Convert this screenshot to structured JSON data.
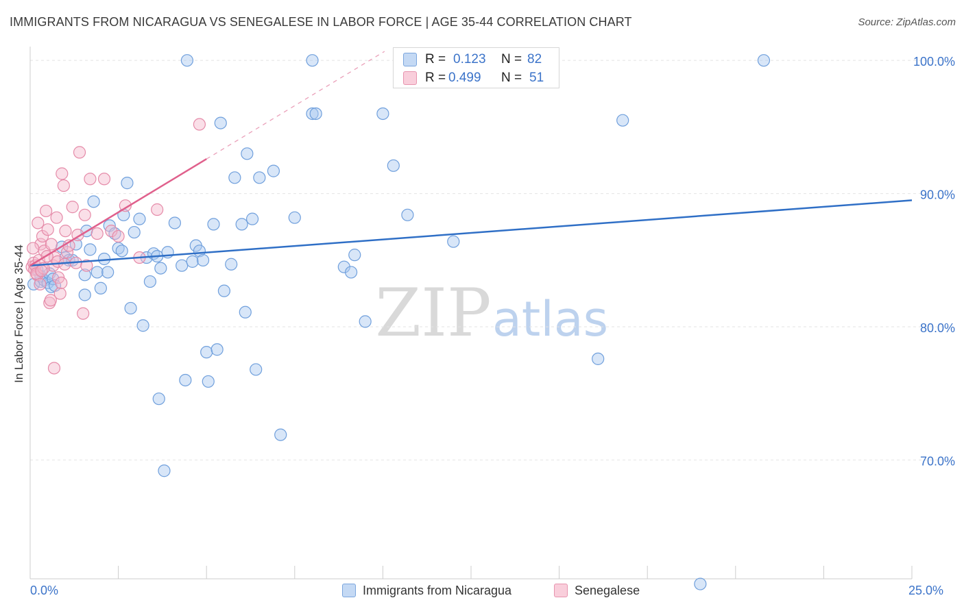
{
  "title": "IMMIGRANTS FROM NICARAGUA VS SENEGALESE IN LABOR FORCE | AGE 35-44 CORRELATION CHART",
  "source": "Source: ZipAtlas.com",
  "colors": {
    "blue_fill": "#a9c8ef",
    "blue_stroke": "#6f9fdc",
    "blue_line": "#2f6fc6",
    "pink_fill": "#f5b8cb",
    "pink_stroke": "#e58aa8",
    "pink_line": "#e0608c",
    "axis_label": "#3b73c9",
    "grid": "#e4e4e4"
  },
  "legend": {
    "rows": [
      {
        "r_label": "R =",
        "r_value": "0.123",
        "n_label": "N =",
        "n_value": "82"
      },
      {
        "r_label": "R =",
        "r_value": "0.499",
        "n_label": "N =",
        "n_value": "51"
      }
    ]
  },
  "bottom_legend": {
    "series1": "Immigrants from Nicaragua",
    "series2": "Senegalese"
  },
  "watermark": {
    "part1": "ZIP",
    "part2": "atlas"
  },
  "chart_data": {
    "type": "scatter",
    "title": "IMMIGRANTS FROM NICARAGUA VS SENEGALESE IN LABOR FORCE | AGE 35-44 CORRELATION CHART",
    "xlabel": "",
    "ylabel": "In Labor Force | Age 35-44",
    "xlim": [
      0,
      25
    ],
    "ylim": [
      61.5,
      101.5
    ],
    "x_tick_labels": [
      {
        "value": 0,
        "label": "0.0%"
      },
      {
        "value": 25,
        "label": "25.0%"
      }
    ],
    "y_tick_labels": [
      {
        "value": 70,
        "label": "70.0%"
      },
      {
        "value": 80,
        "label": "80.0%"
      },
      {
        "value": 90,
        "label": "90.0%"
      },
      {
        "value": 100,
        "label": "100.0%"
      }
    ],
    "x_minor_ticks": [
      2.5,
      5,
      7.5,
      10,
      12.5,
      15,
      17.5,
      20,
      22.5,
      25
    ],
    "series": [
      {
        "name": "Immigrants from Nicaragua",
        "color": "#a9c8ef",
        "R": 0.123,
        "N": 82,
        "trend": {
          "x": [
            0,
            25
          ],
          "y": [
            84.6,
            89.5
          ],
          "extend_dashed": false
        },
        "points": [
          [
            0.1,
            83.2
          ],
          [
            0.3,
            83.4
          ],
          [
            0.3,
            83.8
          ],
          [
            0.4,
            83.5
          ],
          [
            0.5,
            83.3
          ],
          [
            0.55,
            84.0
          ],
          [
            0.6,
            83.0
          ],
          [
            0.65,
            83.6
          ],
          [
            0.7,
            83.1
          ],
          [
            0.9,
            86.0
          ],
          [
            1.0,
            85.2
          ],
          [
            1.1,
            85.0
          ],
          [
            1.2,
            85.0
          ],
          [
            1.3,
            86.2
          ],
          [
            1.55,
            82.4
          ],
          [
            1.55,
            83.9
          ],
          [
            1.6,
            87.2
          ],
          [
            1.7,
            85.8
          ],
          [
            1.8,
            89.4
          ],
          [
            1.9,
            84.1
          ],
          [
            2.0,
            82.9
          ],
          [
            2.1,
            85.1
          ],
          [
            2.2,
            84.1
          ],
          [
            2.25,
            87.6
          ],
          [
            2.4,
            87.0
          ],
          [
            2.5,
            85.9
          ],
          [
            2.6,
            85.7
          ],
          [
            2.65,
            88.4
          ],
          [
            2.75,
            90.8
          ],
          [
            2.85,
            81.4
          ],
          [
            2.95,
            87.1
          ],
          [
            3.1,
            88.1
          ],
          [
            3.2,
            80.1
          ],
          [
            3.3,
            85.2
          ],
          [
            3.4,
            83.4
          ],
          [
            3.5,
            85.5
          ],
          [
            3.6,
            85.3
          ],
          [
            3.65,
            74.6
          ],
          [
            3.7,
            84.4
          ],
          [
            3.8,
            69.2
          ],
          [
            3.9,
            85.6
          ],
          [
            4.1,
            87.8
          ],
          [
            4.3,
            84.6
          ],
          [
            4.4,
            76.0
          ],
          [
            4.45,
            100.0
          ],
          [
            4.6,
            84.9
          ],
          [
            4.7,
            86.1
          ],
          [
            4.8,
            85.7
          ],
          [
            4.9,
            85.0
          ],
          [
            5.0,
            78.1
          ],
          [
            5.05,
            75.9
          ],
          [
            5.2,
            87.7
          ],
          [
            5.3,
            78.3
          ],
          [
            5.4,
            95.3
          ],
          [
            5.5,
            82.7
          ],
          [
            5.7,
            84.7
          ],
          [
            5.8,
            91.2
          ],
          [
            6.0,
            87.7
          ],
          [
            6.1,
            81.1
          ],
          [
            6.15,
            93.0
          ],
          [
            6.3,
            88.1
          ],
          [
            6.4,
            76.8
          ],
          [
            6.5,
            91.2
          ],
          [
            6.9,
            91.7
          ],
          [
            7.1,
            71.9
          ],
          [
            7.5,
            88.2
          ],
          [
            8.0,
            96.0
          ],
          [
            8.0,
            100.0
          ],
          [
            8.1,
            96.0
          ],
          [
            8.9,
            84.5
          ],
          [
            9.1,
            84.1
          ],
          [
            9.2,
            85.4
          ],
          [
            9.5,
            80.4
          ],
          [
            10.0,
            96.0
          ],
          [
            10.3,
            92.1
          ],
          [
            10.7,
            88.4
          ],
          [
            12.0,
            86.4
          ],
          [
            16.1,
            77.6
          ],
          [
            16.8,
            95.5
          ],
          [
            19.0,
            60.7
          ],
          [
            20.8,
            100.0
          ],
          [
            0.2,
            84.3
          ]
        ]
      },
      {
        "name": "Senegalese",
        "color": "#f5b8cb",
        "R": 0.499,
        "N": 51,
        "trend": {
          "x": [
            0,
            5
          ],
          "y": [
            84.6,
            92.6
          ],
          "dashed_x": [
            5,
            25
          ],
          "dashed_y": [
            92.6,
            124.6
          ]
        },
        "points": [
          [
            0.05,
            84.5
          ],
          [
            0.1,
            84.8
          ],
          [
            0.12,
            84.3
          ],
          [
            0.15,
            84.6
          ],
          [
            0.2,
            83.9
          ],
          [
            0.25,
            85.0
          ],
          [
            0.3,
            86.2
          ],
          [
            0.35,
            86.8
          ],
          [
            0.4,
            85.7
          ],
          [
            0.45,
            88.7
          ],
          [
            0.5,
            87.3
          ],
          [
            0.55,
            81.8
          ],
          [
            0.6,
            86.2
          ],
          [
            0.65,
            84.6
          ],
          [
            0.7,
            85.2
          ],
          [
            0.75,
            88.2
          ],
          [
            0.8,
            83.7
          ],
          [
            0.85,
            82.5
          ],
          [
            0.9,
            91.5
          ],
          [
            0.95,
            90.6
          ],
          [
            1.0,
            87.2
          ],
          [
            1.05,
            85.6
          ],
          [
            1.1,
            86.1
          ],
          [
            1.2,
            89.0
          ],
          [
            1.3,
            84.8
          ],
          [
            1.35,
            86.9
          ],
          [
            1.4,
            93.1
          ],
          [
            1.5,
            81.0
          ],
          [
            1.55,
            88.4
          ],
          [
            1.6,
            84.6
          ],
          [
            1.7,
            91.1
          ],
          [
            1.9,
            87.0
          ],
          [
            2.1,
            91.1
          ],
          [
            2.3,
            87.2
          ],
          [
            2.5,
            86.8
          ],
          [
            2.7,
            89.1
          ],
          [
            3.1,
            85.2
          ],
          [
            3.6,
            88.8
          ],
          [
            4.8,
            95.2
          ],
          [
            0.08,
            85.9
          ],
          [
            0.18,
            84.0
          ],
          [
            0.28,
            83.2
          ],
          [
            0.38,
            84.4
          ],
          [
            0.48,
            85.3
          ],
          [
            0.58,
            82.0
          ],
          [
            0.68,
            76.9
          ],
          [
            0.78,
            84.9
          ],
          [
            0.88,
            83.3
          ],
          [
            0.98,
            84.7
          ],
          [
            0.22,
            87.8
          ],
          [
            0.32,
            84.2
          ]
        ]
      }
    ]
  }
}
